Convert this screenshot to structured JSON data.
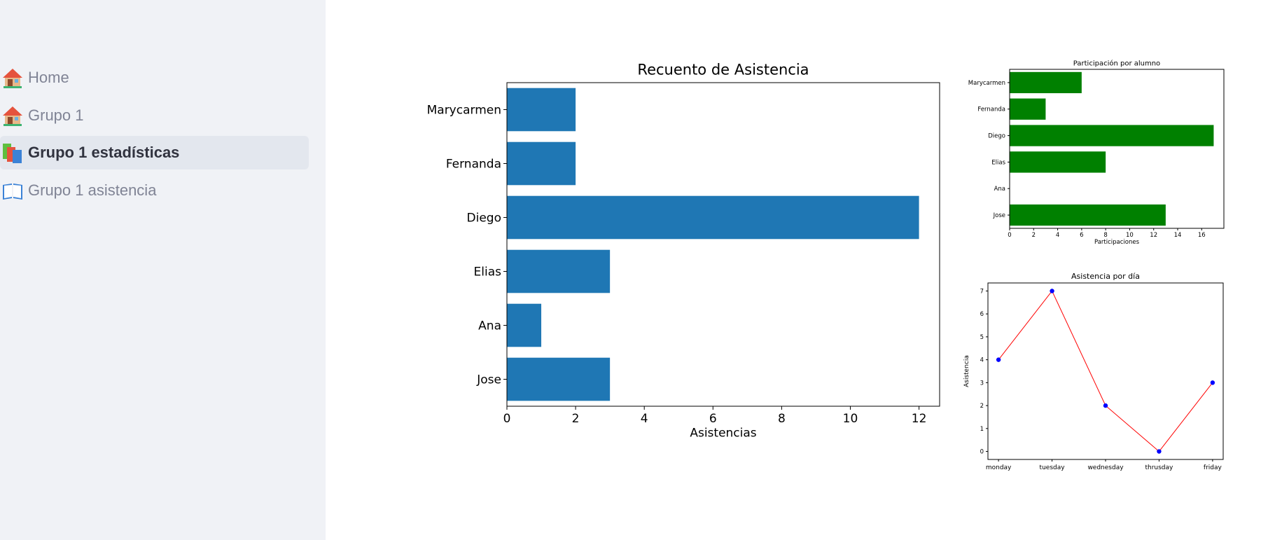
{
  "sidebar": {
    "items": [
      {
        "label": "Home",
        "icon": "house-icon",
        "active": false
      },
      {
        "label": "Grupo 1",
        "icon": "house-icon",
        "active": false
      },
      {
        "label": "Grupo 1 estadísticas",
        "icon": "books-icon",
        "active": true
      },
      {
        "label": "Grupo 1 asistencia",
        "icon": "open-book-icon",
        "active": false
      }
    ]
  },
  "colors": {
    "sidebar_bg": "#f0f2f6",
    "active_bg": "#e3e7ee",
    "bar_blue": "#1f77b4",
    "bar_green": "#008000",
    "line_red": "#ff0000",
    "marker_blue": "#0000ff"
  },
  "chart_data": [
    {
      "type": "bar",
      "orientation": "horizontal",
      "title": "Recuento de Asistencia",
      "xlabel": "Asistencias",
      "ylabel": "",
      "categories": [
        "Marycarmen",
        "Fernanda",
        "Diego",
        "Elias",
        "Ana",
        "Jose"
      ],
      "values": [
        2,
        2,
        12,
        3,
        1,
        3
      ],
      "xlim": [
        0,
        12.6
      ],
      "xticks": [
        0,
        2,
        4,
        6,
        8,
        10,
        12
      ],
      "grid": false
    },
    {
      "type": "bar",
      "orientation": "horizontal",
      "title": "Participación por alumno",
      "xlabel": "Participaciones",
      "ylabel": "",
      "categories": [
        "Marycarmen",
        "Fernanda",
        "Diego",
        "Elias",
        "Ana",
        "Jose"
      ],
      "values": [
        6,
        3,
        17,
        8,
        0,
        13
      ],
      "xlim": [
        0,
        17.85
      ],
      "xticks": [
        0,
        2,
        4,
        6,
        8,
        10,
        12,
        14,
        16
      ],
      "grid": false
    },
    {
      "type": "line",
      "title": "Asistencia por día",
      "xlabel": "",
      "ylabel": "Asistencia",
      "x": [
        "monday",
        "tuesday",
        "wednesday",
        "thrusday",
        "friday"
      ],
      "values": [
        4,
        7,
        2,
        0,
        3
      ],
      "ylim": [
        -0.35,
        7.35
      ],
      "yticks": [
        0,
        1,
        2,
        3,
        4,
        5,
        6,
        7
      ],
      "grid": false
    }
  ]
}
